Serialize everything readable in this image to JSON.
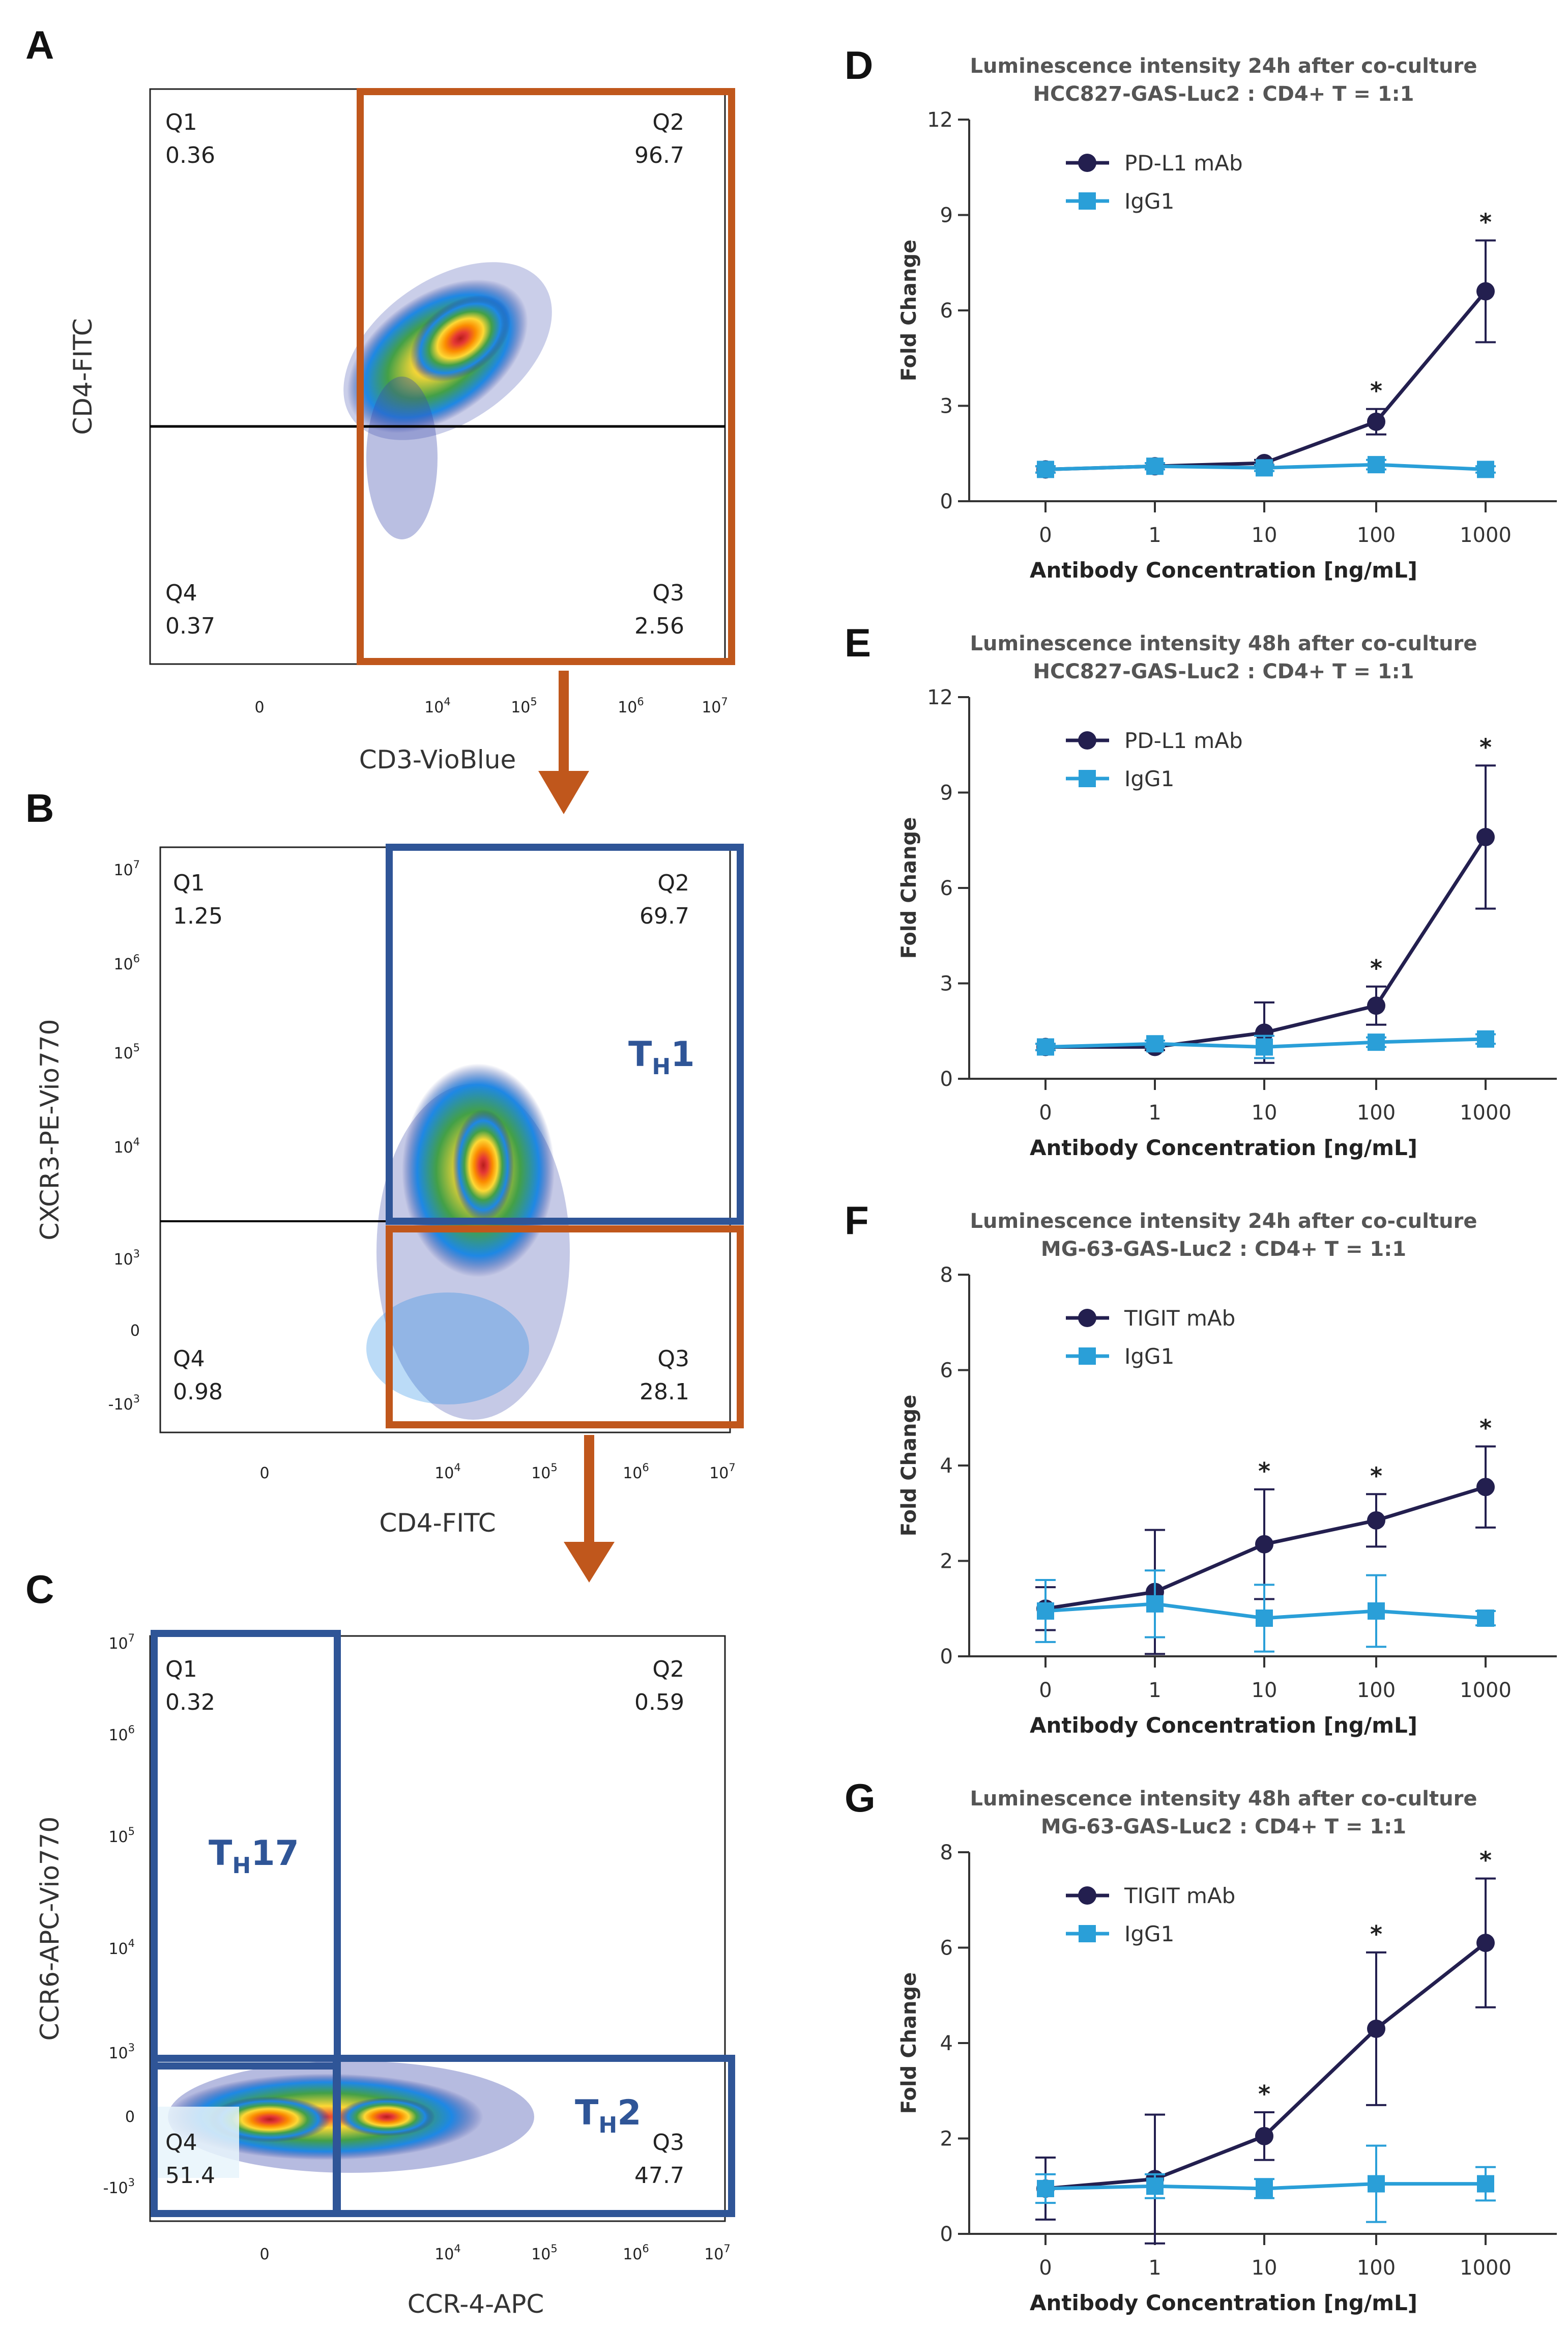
{
  "colors": {
    "gate_orange": "#c0571c",
    "gate_blue": "#2f5597",
    "mab_series": "#231f4f",
    "igg1_series": "#2a9fd8",
    "subtype_text": "#2f5597"
  },
  "flow_panels": [
    {
      "id": "A",
      "label": "A",
      "xlabel": "CD3-VioBlue",
      "ylabel": "CD4-FITC",
      "quadrants": [
        {
          "name": "Q1",
          "value": "0.36"
        },
        {
          "name": "Q2",
          "value": "96.7"
        },
        {
          "name": "Q3",
          "value": "2.56"
        },
        {
          "name": "Q4",
          "value": "0.37"
        }
      ],
      "xticks": [
        {
          "mant": "0",
          "exp": ""
        },
        {
          "mant": "10",
          "exp": "4"
        },
        {
          "mant": "10",
          "exp": "5"
        },
        {
          "mant": "10",
          "exp": "6"
        },
        {
          "mant": "10",
          "exp": "7"
        }
      ],
      "yticks": [],
      "subtypes": []
    },
    {
      "id": "B",
      "label": "B",
      "xlabel": "CD4-FITC",
      "ylabel": "CXCR3-PE-Vio770",
      "quadrants": [
        {
          "name": "Q1",
          "value": "1.25"
        },
        {
          "name": "Q2",
          "value": "69.7"
        },
        {
          "name": "Q3",
          "value": "28.1"
        },
        {
          "name": "Q4",
          "value": "0.98"
        }
      ],
      "xticks": [
        {
          "mant": "0",
          "exp": ""
        },
        {
          "mant": "10",
          "exp": "4"
        },
        {
          "mant": "10",
          "exp": "5"
        },
        {
          "mant": "10",
          "exp": "6"
        },
        {
          "mant": "10",
          "exp": "7"
        }
      ],
      "yticks": [
        {
          "mant": "10",
          "exp": "7"
        },
        {
          "mant": "10",
          "exp": "6"
        },
        {
          "mant": "10",
          "exp": "5"
        },
        {
          "mant": "10",
          "exp": "4"
        },
        {
          "mant": "10",
          "exp": "3"
        },
        {
          "mant": "0",
          "exp": ""
        },
        {
          "mant": "-10",
          "exp": "3"
        }
      ],
      "subtypes": [
        {
          "main": "T",
          "sub": "H",
          "suffix": "1"
        }
      ]
    },
    {
      "id": "C",
      "label": "C",
      "xlabel": "CCR-4-APC",
      "ylabel": "CCR6-APC-Vio770",
      "quadrants": [
        {
          "name": "Q1",
          "value": "0.32"
        },
        {
          "name": "Q2",
          "value": "0.59"
        },
        {
          "name": "Q3",
          "value": "47.7"
        },
        {
          "name": "Q4",
          "value": "51.4"
        }
      ],
      "xticks": [
        {
          "mant": "0",
          "exp": ""
        },
        {
          "mant": "10",
          "exp": "4"
        },
        {
          "mant": "10",
          "exp": "5"
        },
        {
          "mant": "10",
          "exp": "6"
        },
        {
          "mant": "10",
          "exp": "7"
        }
      ],
      "yticks": [
        {
          "mant": "10",
          "exp": "7"
        },
        {
          "mant": "10",
          "exp": "6"
        },
        {
          "mant": "10",
          "exp": "5"
        },
        {
          "mant": "10",
          "exp": "4"
        },
        {
          "mant": "10",
          "exp": "3"
        },
        {
          "mant": "0",
          "exp": ""
        },
        {
          "mant": "-10",
          "exp": "3"
        }
      ],
      "subtypes": [
        {
          "main": "T",
          "sub": "H",
          "suffix": "17"
        },
        {
          "main": "T",
          "sub": "H",
          "suffix": "2"
        }
      ]
    }
  ],
  "chart_data": [
    {
      "panel": "D",
      "type": "line",
      "title": "Luminescence intensity 24h after co-culture",
      "subtitle": "HCC827-GAS-Luc2 : CD4+ T = 1:1",
      "xlabel": "Antibody Concentration [ng/mL]",
      "ylabel": "Fold Change",
      "categories": [
        "0",
        "1",
        "10",
        "100",
        "1000"
      ],
      "ylim": [
        0,
        12
      ],
      "yticks": [
        0,
        3,
        6,
        9,
        12
      ],
      "legend_position": "top-left",
      "series": [
        {
          "name": "PD-L1 mAb",
          "values": [
            1.0,
            1.1,
            1.2,
            2.5,
            6.6
          ],
          "errors": [
            0.1,
            0.1,
            0.1,
            0.4,
            1.6
          ]
        },
        {
          "name": "IgG1",
          "values": [
            1.0,
            1.1,
            1.05,
            1.15,
            1.0
          ],
          "errors": [
            0.1,
            0.1,
            0.1,
            0.15,
            0.1
          ]
        }
      ],
      "significance": [
        "",
        "",
        "",
        "*",
        "*"
      ]
    },
    {
      "panel": "E",
      "type": "line",
      "title": "Luminescence intensity 48h after co-culture",
      "subtitle": "HCC827-GAS-Luc2 : CD4+ T = 1:1",
      "xlabel": "Antibody Concentration [ng/mL]",
      "ylabel": "Fold Change",
      "categories": [
        "0",
        "1",
        "10",
        "100",
        "1000"
      ],
      "ylim": [
        0,
        12
      ],
      "yticks": [
        0,
        3,
        6,
        9,
        12
      ],
      "legend_position": "top-left",
      "series": [
        {
          "name": "PD-L1 mAb",
          "values": [
            1.0,
            1.0,
            1.45,
            2.3,
            7.6
          ],
          "errors": [
            0.1,
            0.1,
            0.95,
            0.6,
            2.25
          ]
        },
        {
          "name": "IgG1",
          "values": [
            1.0,
            1.1,
            1.0,
            1.15,
            1.25
          ],
          "errors": [
            0.1,
            0.1,
            0.35,
            0.15,
            0.15
          ]
        }
      ],
      "significance": [
        "",
        "",
        "",
        "*",
        "*"
      ]
    },
    {
      "panel": "F",
      "type": "line",
      "title": "Luminescence intensity 24h after co-culture",
      "subtitle": "MG-63-GAS-Luc2 : CD4+ T = 1:1",
      "xlabel": "Antibody Concentration [ng/mL]",
      "ylabel": "Fold Change",
      "categories": [
        "0",
        "1",
        "10",
        "100",
        "1000"
      ],
      "ylim": [
        0,
        8
      ],
      "yticks": [
        0,
        2,
        4,
        6,
        8
      ],
      "legend_position": "top-left",
      "series": [
        {
          "name": "TIGIT mAb",
          "values": [
            1.0,
            1.35,
            2.35,
            2.85,
            3.55
          ],
          "errors": [
            0.45,
            1.3,
            1.15,
            0.55,
            0.85
          ]
        },
        {
          "name": "IgG1",
          "values": [
            0.95,
            1.1,
            0.8,
            0.95,
            0.8
          ],
          "errors": [
            0.65,
            0.7,
            0.7,
            0.75,
            0.15
          ]
        }
      ],
      "significance": [
        "",
        "",
        "*",
        "*",
        "*"
      ]
    },
    {
      "panel": "G",
      "type": "line",
      "title": "Luminescence intensity 48h after co-culture",
      "subtitle": "MG-63-GAS-Luc2 : CD4+ T = 1:1",
      "xlabel": "Antibody Concentration [ng/mL]",
      "ylabel": "Fold Change",
      "categories": [
        "0",
        "1",
        "10",
        "100",
        "1000"
      ],
      "ylim": [
        0,
        8
      ],
      "yticks": [
        0,
        2,
        4,
        6,
        8
      ],
      "legend_position": "top-left",
      "series": [
        {
          "name": "TIGIT mAb",
          "values": [
            0.95,
            1.15,
            2.05,
            4.3,
            6.1
          ],
          "errors": [
            0.65,
            1.35,
            0.5,
            1.6,
            1.35
          ]
        },
        {
          "name": "IgG1",
          "values": [
            0.95,
            1.0,
            0.95,
            1.05,
            1.05
          ],
          "errors": [
            0.3,
            0.25,
            0.2,
            0.8,
            0.35
          ]
        }
      ],
      "significance": [
        "",
        "",
        "*",
        "*",
        "*"
      ]
    }
  ]
}
